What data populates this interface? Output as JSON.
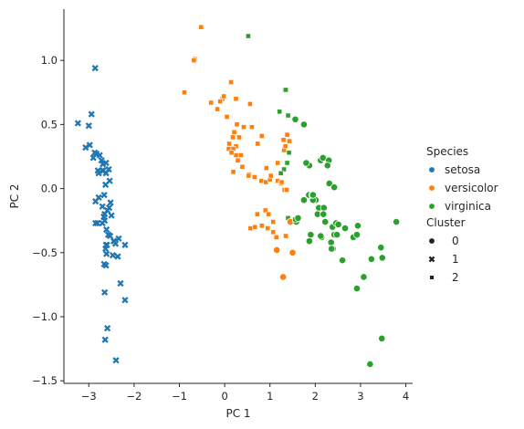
{
  "chart_data": {
    "type": "scatter",
    "xlabel": "PC 1",
    "ylabel": "PC 2",
    "xlim": [
      -3.55,
      4.15
    ],
    "ylim": [
      -1.52,
      1.4
    ],
    "xticks": [
      -3,
      -2,
      -1,
      0,
      1,
      2,
      3,
      4
    ],
    "xtick_labels": [
      "−3",
      "−2",
      "−1",
      "0",
      "1",
      "2",
      "3",
      "4"
    ],
    "yticks": [
      -1.5,
      -1.0,
      -0.5,
      0.0,
      0.5,
      1.0
    ],
    "ytick_labels": [
      "−1.5",
      "−1.0",
      "−0.5",
      "0.0",
      "0.5",
      "1.0"
    ],
    "grid": false,
    "legend": {
      "position": "right",
      "hue_title": "Species",
      "style_title": "Cluster",
      "hue_entries": [
        {
          "label": "setosa",
          "color": "#1f77b4"
        },
        {
          "label": "versicolor",
          "color": "#ff7f0e"
        },
        {
          "label": "virginica",
          "color": "#2ca02c"
        }
      ],
      "style_entries": [
        {
          "label": "0",
          "marker": "circle"
        },
        {
          "label": "1",
          "marker": "x"
        },
        {
          "label": "2",
          "marker": "square"
        }
      ]
    },
    "series": [
      {
        "name": "setosa",
        "color": "#1f77b4",
        "marker": "x",
        "x": [
          -2.86,
          -3.24,
          -3.0,
          -2.94,
          -2.98,
          -3.07,
          -2.9,
          -2.83,
          -2.87,
          -2.76,
          -2.8,
          -2.72,
          -2.69,
          -2.62,
          -2.7,
          -2.78,
          -2.68,
          -2.62,
          -2.54,
          -2.56,
          -2.63,
          -2.78,
          -2.85,
          -2.66,
          -2.52,
          -2.7,
          -2.59,
          -2.65,
          -2.55,
          -2.67,
          -2.5,
          -2.65,
          -2.7,
          -2.61,
          -2.57,
          -2.53,
          -2.45,
          -2.44,
          -2.62,
          -2.6,
          -2.41,
          -2.34,
          -2.36,
          -2.2,
          -2.85,
          -2.81,
          -2.63,
          -2.61,
          -2.66,
          -2.62,
          -2.47,
          -2.3,
          -2.2,
          -2.65,
          -2.64,
          -2.59,
          -2.4
        ],
        "y": [
          0.94,
          0.51,
          0.49,
          0.58,
          0.34,
          0.32,
          0.24,
          0.27,
          0.28,
          0.26,
          0.14,
          0.22,
          0.19,
          0.2,
          0.14,
          0.12,
          0.14,
          0.12,
          0.06,
          0.15,
          0.03,
          -0.07,
          -0.1,
          -0.05,
          -0.11,
          -0.14,
          -0.17,
          -0.2,
          -0.15,
          -0.22,
          -0.21,
          -0.25,
          -0.27,
          -0.32,
          -0.36,
          -0.37,
          -0.41,
          -0.41,
          -0.44,
          -0.44,
          -0.43,
          -0.39,
          -0.53,
          -0.44,
          -0.27,
          -0.27,
          -0.47,
          -0.51,
          -0.59,
          -0.6,
          -0.52,
          -0.74,
          -0.87,
          -0.81,
          -1.18,
          -1.09,
          -1.34
        ]
      },
      {
        "name": "versicolor",
        "color": "#ff7f0e",
        "marker": "square",
        "x": [
          -0.52,
          -0.66,
          -0.68,
          -0.89,
          -0.05,
          -0.1,
          -0.02,
          0.14,
          0.25,
          -0.16,
          -0.3,
          0.05,
          0.27,
          0.42,
          0.21,
          0.18,
          0.32,
          0.09,
          0.56,
          0.1,
          0.73,
          0.6,
          0.82,
          1.3,
          0.25,
          0.19,
          0.25,
          0.15,
          0.29,
          0.36,
          0.39,
          0.19,
          0.54,
          0.53,
          0.92,
          0.66,
          0.81,
          0.91,
          1.0,
          1.02,
          1.17,
          1.31,
          1.38,
          1.34,
          1.43,
          1.17,
          1.32,
          1.24,
          1.26,
          1.37,
          0.9,
          0.97,
          1.07,
          0.57,
          0.67,
          0.72,
          0.82,
          0.95,
          1.07,
          1.14,
          1.35
        ],
        "y": [
          1.26,
          1.01,
          1.0,
          0.75,
          0.7,
          0.68,
          0.72,
          0.83,
          0.7,
          0.62,
          0.67,
          0.56,
          0.5,
          0.48,
          0.44,
          0.4,
          0.4,
          0.31,
          0.66,
          0.35,
          0.35,
          0.48,
          0.41,
          0.38,
          0.33,
          0.31,
          0.26,
          0.28,
          0.22,
          0.26,
          0.17,
          0.13,
          0.11,
          0.1,
          0.16,
          0.09,
          0.06,
          0.05,
          0.07,
          0.1,
          0.2,
          0.3,
          0.42,
          0.33,
          0.37,
          0.06,
          -0.01,
          0.04,
          0.05,
          -0.01,
          -0.17,
          -0.2,
          -0.26,
          -0.31,
          -0.3,
          -0.2,
          -0.29,
          -0.31,
          -0.34,
          -0.38,
          -0.37
        ]
      },
      {
        "name": "virginica",
        "color": "#2ca02c",
        "marker": "square",
        "x": [
          0.52,
          1.33,
          1.35,
          1.21,
          1.4,
          1.42,
          1.31,
          1.38,
          1.24,
          1.4
        ],
        "y": [
          1.19,
          0.77,
          0.77,
          0.6,
          0.57,
          0.28,
          0.15,
          0.2,
          0.12,
          -0.23
        ]
      },
      {
        "name": "versicolor",
        "color": "#ff7f0e",
        "marker": "circle",
        "x": [
          1.45,
          1.5,
          1.29,
          1.15
        ],
        "y": [
          -0.26,
          -0.5,
          -0.69,
          -0.48
        ]
      },
      {
        "name": "virginica",
        "color": "#2ca02c",
        "marker": "circle",
        "x": [
          1.56,
          1.75,
          1.87,
          1.8,
          2.12,
          2.17,
          2.3,
          2.31,
          2.27,
          2.42,
          2.01,
          1.95,
          2.08,
          1.75,
          1.86,
          1.93,
          1.95,
          2.19,
          2.05,
          2.18,
          2.22,
          2.38,
          2.42,
          2.46,
          2.51,
          2.48,
          2.84,
          2.92,
          2.94,
          2.66,
          2.39,
          2.14,
          1.9,
          1.58,
          1.57,
          1.62,
          1.87,
          2.12,
          2.35,
          2.6,
          2.36,
          3.07,
          3.24,
          3.48,
          3.45,
          3.47,
          3.79,
          2.92,
          3.21
        ],
        "y": [
          0.54,
          0.5,
          0.18,
          0.2,
          0.22,
          0.24,
          0.22,
          0.04,
          0.18,
          0.01,
          -0.09,
          -0.09,
          -0.15,
          -0.09,
          -0.05,
          -0.05,
          -0.05,
          -0.15,
          -0.2,
          -0.2,
          -0.26,
          -0.3,
          -0.36,
          -0.27,
          -0.28,
          -0.36,
          -0.38,
          -0.36,
          -0.29,
          -0.31,
          -0.47,
          -0.38,
          -0.36,
          -0.26,
          -0.24,
          -0.23,
          -0.41,
          -0.37,
          -0.42,
          -0.56,
          -0.47,
          -0.69,
          -0.55,
          -0.54,
          -0.46,
          -1.17,
          -0.26,
          -0.78,
          -1.37
        ]
      }
    ]
  }
}
